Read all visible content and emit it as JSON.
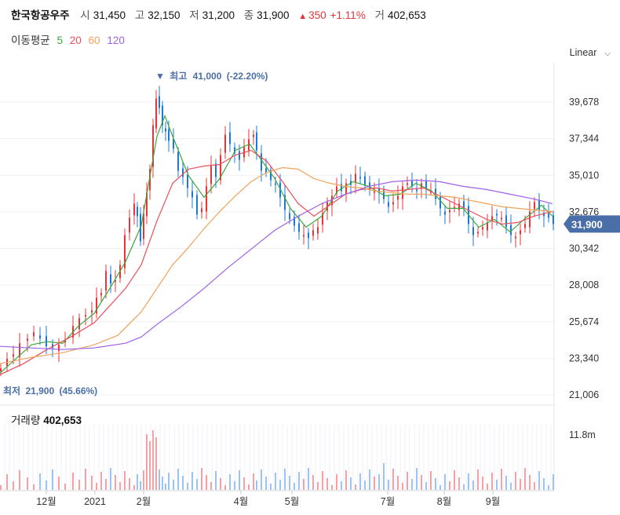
{
  "header": {
    "name": "한국항공우주",
    "open_label": "시",
    "open": "31,450",
    "high_label": "고",
    "high": "32,150",
    "low_label": "저",
    "low": "31,200",
    "close_label": "종",
    "close": "31,900",
    "change_arrow": "▲",
    "change": "350",
    "change_pct": "+1.11%",
    "volume_label": "거",
    "volume": "402,653"
  },
  "ma_legend": {
    "label": "이동평균",
    "items": [
      {
        "period": "5",
        "color": "#3aaa3a"
      },
      {
        "period": "20",
        "color": "#e8505b"
      },
      {
        "period": "60",
        "color": "#f0a35a"
      },
      {
        "period": "120",
        "color": "#a060e8"
      }
    ]
  },
  "scale_select": {
    "label": "Linear",
    "icon": "chevron-down-icon"
  },
  "volume_panel": {
    "label": "거래량",
    "value": "402,653",
    "scale_label": "11.8m"
  },
  "colors": {
    "up": "#e5343a",
    "down": "#1f78d1",
    "price_tag": "#4a6fa8"
  },
  "chart_data": {
    "type": "candlestick",
    "y_ticks": [
      39678,
      37344,
      35010,
      32676,
      30342,
      28008,
      25674,
      23340,
      21006
    ],
    "y_tick_labels": [
      "39,678",
      "37,344",
      "35,010",
      "32,676",
      "30,342",
      "28,008",
      "25,674",
      "23,340",
      "21,006"
    ],
    "ylim": [
      21006,
      41000
    ],
    "x_labels": [
      "12월",
      "2021",
      "2월",
      "4월",
      "5월",
      "7월",
      "8월",
      "9월"
    ],
    "current_price": 31900,
    "current_price_label": "31,900",
    "high_annotation": {
      "marker": "▼",
      "label": "최고",
      "value": "41,000",
      "pct": "(-22.20%)"
    },
    "low_annotation": {
      "label": "최저",
      "value": "21,900",
      "pct": "(45.66%)"
    },
    "close_path": [
      [
        0,
        22700
      ],
      [
        8,
        23300
      ],
      [
        16,
        23600
      ],
      [
        24,
        24300
      ],
      [
        34,
        24600
      ],
      [
        42,
        25000
      ],
      [
        50,
        24600
      ],
      [
        58,
        24100
      ],
      [
        66,
        24000
      ],
      [
        74,
        24200
      ],
      [
        82,
        24500
      ],
      [
        92,
        25400
      ],
      [
        100,
        25900
      ],
      [
        108,
        26100
      ],
      [
        116,
        26400
      ],
      [
        122,
        27200
      ],
      [
        128,
        27500
      ],
      [
        134,
        28900
      ],
      [
        140,
        28100
      ],
      [
        146,
        28300
      ],
      [
        152,
        29300
      ],
      [
        158,
        31200
      ],
      [
        164,
        32300
      ],
      [
        170,
        33200
      ],
      [
        174,
        32400
      ],
      [
        178,
        30800
      ],
      [
        182,
        32600
      ],
      [
        186,
        33900
      ],
      [
        190,
        35400
      ],
      [
        194,
        38200
      ],
      [
        198,
        39900
      ],
      [
        202,
        39300
      ],
      [
        206,
        38200
      ],
      [
        210,
        37800
      ],
      [
        214,
        37200
      ],
      [
        220,
        36700
      ],
      [
        226,
        35300
      ],
      [
        232,
        34900
      ],
      [
        238,
        34200
      ],
      [
        244,
        33600
      ],
      [
        250,
        32500
      ],
      [
        256,
        32900
      ],
      [
        262,
        34300
      ],
      [
        268,
        35600
      ],
      [
        274,
        34900
      ],
      [
        280,
        36300
      ],
      [
        286,
        37600
      ],
      [
        292,
        37000
      ],
      [
        298,
        36400
      ],
      [
        304,
        36000
      ],
      [
        310,
        36800
      ],
      [
        316,
        37300
      ],
      [
        322,
        37600
      ],
      [
        326,
        36600
      ],
      [
        332,
        35300
      ],
      [
        338,
        35200
      ],
      [
        344,
        34700
      ],
      [
        350,
        34400
      ],
      [
        356,
        33600
      ],
      [
        362,
        32800
      ],
      [
        368,
        32200
      ],
      [
        374,
        31800
      ],
      [
        380,
        31400
      ],
      [
        386,
        31200
      ],
      [
        392,
        31000
      ],
      [
        398,
        31500
      ],
      [
        404,
        31700
      ],
      [
        410,
        32600
      ],
      [
        416,
        33300
      ],
      [
        422,
        33700
      ],
      [
        428,
        34300
      ],
      [
        434,
        34000
      ],
      [
        440,
        34500
      ],
      [
        446,
        34400
      ],
      [
        452,
        35100
      ],
      [
        458,
        34800
      ],
      [
        464,
        34400
      ],
      [
        470,
        34200
      ],
      [
        476,
        34000
      ],
      [
        482,
        33900
      ],
      [
        488,
        33500
      ],
      [
        494,
        33000
      ],
      [
        500,
        33300
      ],
      [
        506,
        33700
      ],
      [
        512,
        34300
      ],
      [
        518,
        34500
      ],
      [
        524,
        34300
      ],
      [
        530,
        34000
      ],
      [
        536,
        34500
      ],
      [
        542,
        34200
      ],
      [
        548,
        34000
      ],
      [
        554,
        33500
      ],
      [
        560,
        32900
      ],
      [
        566,
        32500
      ],
      [
        572,
        32800
      ],
      [
        578,
        33000
      ],
      [
        584,
        33200
      ],
      [
        590,
        32900
      ],
      [
        596,
        31900
      ],
      [
        602,
        31200
      ],
      [
        608,
        31400
      ],
      [
        614,
        31700
      ],
      [
        620,
        32000
      ],
      [
        626,
        32400
      ],
      [
        632,
        32500
      ],
      [
        638,
        32300
      ],
      [
        644,
        31700
      ],
      [
        650,
        31200
      ],
      [
        656,
        31100
      ],
      [
        662,
        31500
      ],
      [
        668,
        31900
      ],
      [
        674,
        32700
      ],
      [
        680,
        33300
      ],
      [
        686,
        32800
      ],
      [
        692,
        32400
      ],
      [
        698,
        32300
      ],
      [
        704,
        31900
      ]
    ],
    "ma_series": [
      {
        "period": "5",
        "color": "#3aaa3a",
        "points": [
          [
            0,
            22400
          ],
          [
            20,
            23300
          ],
          [
            40,
            24200
          ],
          [
            60,
            24400
          ],
          [
            80,
            24300
          ],
          [
            100,
            25400
          ],
          [
            120,
            26200
          ],
          [
            140,
            27800
          ],
          [
            160,
            29500
          ],
          [
            180,
            31800
          ],
          [
            200,
            37500
          ],
          [
            210,
            38800
          ],
          [
            220,
            37500
          ],
          [
            240,
            35000
          ],
          [
            260,
            33600
          ],
          [
            280,
            34800
          ],
          [
            300,
            36600
          ],
          [
            318,
            37000
          ],
          [
            330,
            36200
          ],
          [
            350,
            34800
          ],
          [
            370,
            32900
          ],
          [
            390,
            31700
          ],
          [
            410,
            32400
          ],
          [
            430,
            34000
          ],
          [
            450,
            34600
          ],
          [
            470,
            34300
          ],
          [
            490,
            33700
          ],
          [
            510,
            33800
          ],
          [
            530,
            34500
          ],
          [
            550,
            34000
          ],
          [
            570,
            32900
          ],
          [
            590,
            32900
          ],
          [
            610,
            31700
          ],
          [
            630,
            32200
          ],
          [
            650,
            31400
          ],
          [
            670,
            32300
          ],
          [
            690,
            33100
          ],
          [
            704,
            32400
          ]
        ]
      },
      {
        "period": "20",
        "color": "#e8505b",
        "points": [
          [
            0,
            22300
          ],
          [
            30,
            23000
          ],
          [
            60,
            23900
          ],
          [
            90,
            24700
          ],
          [
            120,
            25600
          ],
          [
            140,
            26700
          ],
          [
            160,
            27800
          ],
          [
            180,
            29300
          ],
          [
            200,
            32100
          ],
          [
            220,
            34500
          ],
          [
            240,
            35400
          ],
          [
            260,
            35600
          ],
          [
            280,
            35700
          ],
          [
            300,
            36300
          ],
          [
            320,
            36600
          ],
          [
            340,
            35900
          ],
          [
            360,
            34600
          ],
          [
            380,
            33200
          ],
          [
            400,
            32400
          ],
          [
            420,
            33100
          ],
          [
            440,
            33800
          ],
          [
            460,
            34100
          ],
          [
            480,
            34200
          ],
          [
            500,
            34000
          ],
          [
            520,
            34100
          ],
          [
            540,
            34200
          ],
          [
            560,
            33700
          ],
          [
            580,
            33200
          ],
          [
            600,
            32700
          ],
          [
            620,
            32200
          ],
          [
            640,
            31900
          ],
          [
            660,
            32000
          ],
          [
            680,
            32400
          ],
          [
            704,
            32700
          ]
        ]
      },
      {
        "period": "60",
        "color": "#f0a35a",
        "points": [
          [
            0,
            23000
          ],
          [
            40,
            23400
          ],
          [
            80,
            23700
          ],
          [
            120,
            24200
          ],
          [
            150,
            24800
          ],
          [
            180,
            26300
          ],
          [
            200,
            27800
          ],
          [
            220,
            29300
          ],
          [
            240,
            30400
          ],
          [
            260,
            31600
          ],
          [
            280,
            32700
          ],
          [
            300,
            33700
          ],
          [
            320,
            34600
          ],
          [
            340,
            35200
          ],
          [
            360,
            35500
          ],
          [
            380,
            35400
          ],
          [
            400,
            34800
          ],
          [
            420,
            34500
          ],
          [
            440,
            34300
          ],
          [
            460,
            34200
          ],
          [
            480,
            34000
          ],
          [
            500,
            33900
          ],
          [
            520,
            33800
          ],
          [
            540,
            33800
          ],
          [
            560,
            33700
          ],
          [
            580,
            33600
          ],
          [
            600,
            33400
          ],
          [
            620,
            33200
          ],
          [
            640,
            33000
          ],
          [
            660,
            32900
          ],
          [
            680,
            32800
          ],
          [
            704,
            32700
          ]
        ]
      },
      {
        "period": "120",
        "color": "#a060e8",
        "points": [
          [
            0,
            24100
          ],
          [
            40,
            24000
          ],
          [
            80,
            23900
          ],
          [
            120,
            24000
          ],
          [
            160,
            24300
          ],
          [
            180,
            24700
          ],
          [
            200,
            25500
          ],
          [
            230,
            26600
          ],
          [
            260,
            27800
          ],
          [
            290,
            29100
          ],
          [
            320,
            30300
          ],
          [
            350,
            31500
          ],
          [
            380,
            32400
          ],
          [
            410,
            33200
          ],
          [
            440,
            33800
          ],
          [
            470,
            34300
          ],
          [
            500,
            34600
          ],
          [
            530,
            34700
          ],
          [
            560,
            34600
          ],
          [
            590,
            34300
          ],
          [
            620,
            34100
          ],
          [
            650,
            33800
          ],
          [
            680,
            33500
          ],
          [
            704,
            33200
          ]
        ]
      }
    ]
  }
}
